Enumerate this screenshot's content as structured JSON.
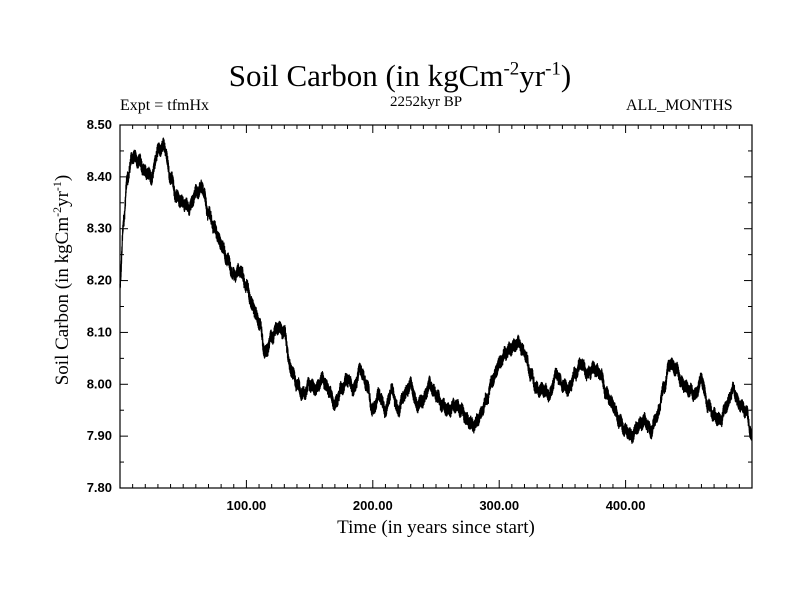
{
  "chart_data": {
    "type": "line",
    "title": "Soil Carbon (in kgCm",
    "title_exp1": "-2",
    "title_mid": "yr",
    "title_exp2": "-1",
    "title_end": ")",
    "subtitle": "2252kyr BP",
    "left_annotation": "Expt = tfmHx",
    "right_annotation": "ALL_MONTHS",
    "xlabel": "Time (in years since start)",
    "ylabel": "Soil Carbon (in kgCm",
    "ylabel_exp1": "-2",
    "ylabel_mid": "yr",
    "ylabel_exp2": "-1",
    "ylabel_end": ")",
    "xlim": [
      0,
      500
    ],
    "ylim": [
      7.8,
      8.5
    ],
    "xticks": [
      100,
      200,
      300,
      400
    ],
    "xtick_labels": [
      "100.00",
      "200.00",
      "300.00",
      "400.00"
    ],
    "yticks": [
      7.8,
      7.9,
      8.0,
      8.1,
      8.2,
      8.3,
      8.4,
      8.5
    ],
    "ytick_labels": [
      "7.80",
      "7.90",
      "8.00",
      "8.10",
      "8.20",
      "8.30",
      "8.40",
      "8.50"
    ],
    "noise_amplitude": 0.012,
    "series": [
      {
        "name": "Soil Carbon",
        "color": "#000000",
        "x": [
          0,
          3,
          6,
          10,
          15,
          20,
          25,
          30,
          35,
          40,
          45,
          50,
          55,
          60,
          65,
          70,
          75,
          80,
          85,
          90,
          95,
          100,
          105,
          110,
          115,
          120,
          125,
          130,
          135,
          140,
          145,
          150,
          155,
          160,
          165,
          170,
          175,
          180,
          185,
          190,
          195,
          200,
          205,
          210,
          215,
          220,
          225,
          230,
          235,
          240,
          245,
          250,
          255,
          260,
          265,
          270,
          275,
          280,
          285,
          290,
          295,
          300,
          305,
          310,
          315,
          320,
          325,
          330,
          335,
          340,
          345,
          350,
          355,
          360,
          365,
          370,
          375,
          380,
          385,
          390,
          395,
          400,
          405,
          410,
          415,
          420,
          425,
          430,
          435,
          440,
          445,
          450,
          455,
          460,
          465,
          470,
          475,
          480,
          485,
          490,
          495,
          500
        ],
        "values": [
          8.19,
          8.32,
          8.4,
          8.44,
          8.43,
          8.41,
          8.4,
          8.45,
          8.46,
          8.4,
          8.36,
          8.35,
          8.34,
          8.37,
          8.38,
          8.33,
          8.3,
          8.27,
          8.24,
          8.21,
          8.22,
          8.19,
          8.15,
          8.12,
          8.06,
          8.09,
          8.11,
          8.1,
          8.03,
          8.0,
          7.98,
          8.0,
          7.99,
          8.01,
          7.99,
          7.96,
          7.99,
          8.01,
          7.99,
          8.03,
          8.0,
          7.95,
          7.98,
          7.95,
          7.99,
          7.95,
          7.98,
          8.0,
          7.96,
          7.97,
          8.0,
          7.98,
          7.96,
          7.95,
          7.96,
          7.95,
          7.93,
          7.92,
          7.94,
          7.97,
          8.01,
          8.04,
          8.06,
          8.07,
          8.08,
          8.06,
          8.02,
          7.99,
          7.99,
          7.98,
          8.02,
          8.0,
          7.99,
          8.02,
          8.04,
          8.02,
          8.03,
          8.02,
          7.98,
          7.96,
          7.93,
          7.91,
          7.9,
          7.92,
          7.93,
          7.91,
          7.94,
          7.99,
          8.04,
          8.03,
          8.0,
          7.99,
          7.98,
          8.01,
          7.96,
          7.94,
          7.93,
          7.96,
          7.99,
          7.96,
          7.95,
          7.9
        ]
      }
    ]
  }
}
